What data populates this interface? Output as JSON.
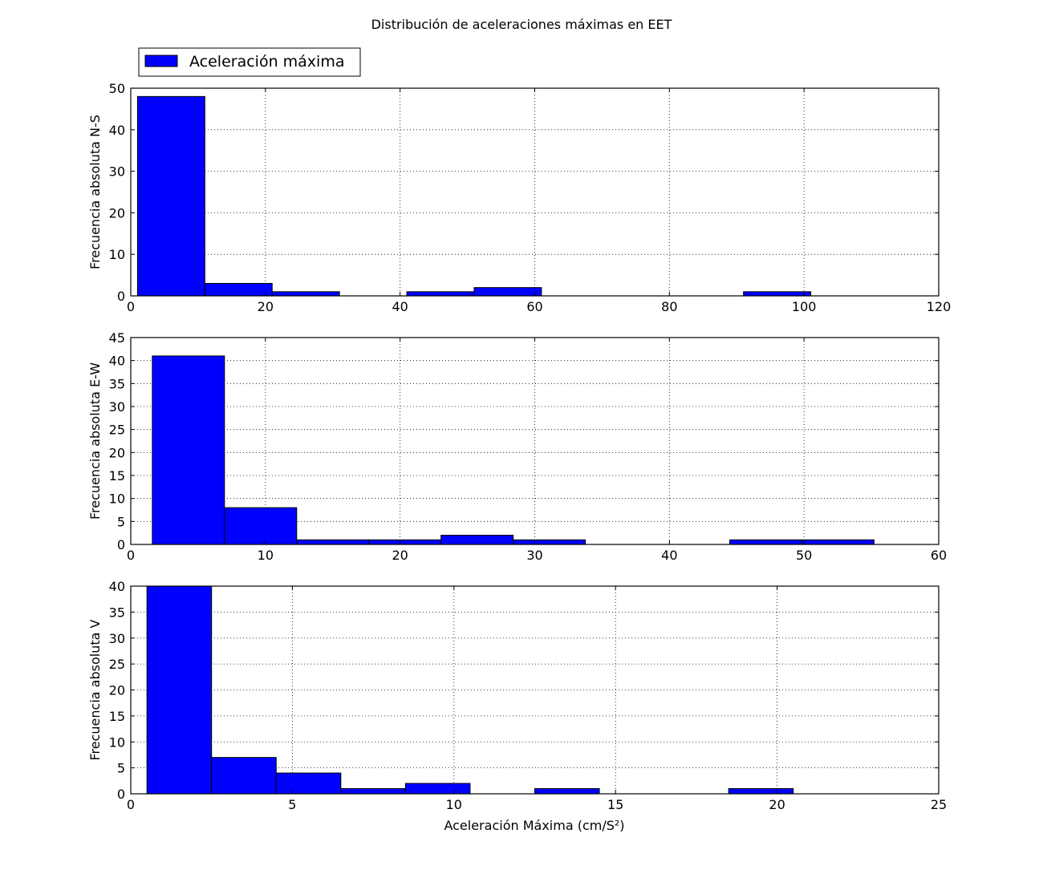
{
  "figure": {
    "title": "Distribución de aceleraciones máximas en EET",
    "xlabel": "Aceleración Máxima (cm/S²)",
    "legend": {
      "label": "Aceleración máxima",
      "placement": "above-top-left"
    }
  },
  "colors": {
    "bar_fill": "#0000ff",
    "bar_edge": "#000000",
    "grid": "#000000"
  },
  "chart_data": [
    {
      "type": "bar",
      "name": "N-S",
      "ylabel": "Frecuencia absoluta N-S",
      "xlim": [
        0,
        120
      ],
      "ylim": [
        0,
        50
      ],
      "xticks": [
        0,
        20,
        40,
        60,
        80,
        100,
        120
      ],
      "yticks": [
        0,
        10,
        20,
        30,
        40,
        50
      ],
      "bin_edges": [
        1,
        11,
        21,
        31,
        41,
        51,
        61,
        71,
        81,
        91,
        101
      ],
      "values": [
        48,
        3,
        1,
        0,
        1,
        2,
        0,
        0,
        0,
        1
      ],
      "grid": true
    },
    {
      "type": "bar",
      "name": "E-W",
      "ylabel": "Frecuencia absoluta E-W",
      "xlim": [
        0,
        60
      ],
      "ylim": [
        0,
        45
      ],
      "xticks": [
        0,
        10,
        20,
        30,
        40,
        50,
        60
      ],
      "yticks": [
        0,
        5,
        10,
        15,
        20,
        25,
        30,
        35,
        40,
        45
      ],
      "bin_edges": [
        1.6,
        6.96,
        12.32,
        17.68,
        23.04,
        28.4,
        33.76,
        39.12,
        44.48,
        49.84,
        55.2
      ],
      "values": [
        41,
        8,
        1,
        1,
        2,
        1,
        0,
        0,
        1,
        1
      ],
      "grid": true
    },
    {
      "type": "bar",
      "name": "V",
      "ylabel": "Frecuencia absoluta V",
      "xlim": [
        0,
        25
      ],
      "ylim": [
        0,
        40
      ],
      "xticks": [
        0,
        5,
        10,
        15,
        20,
        25
      ],
      "yticks": [
        0,
        5,
        10,
        15,
        20,
        25,
        30,
        35,
        40
      ],
      "bin_edges": [
        0.5,
        2.5,
        4.5,
        6.5,
        8.5,
        10.5,
        12.5,
        14.5,
        16.5,
        18.5,
        20.5
      ],
      "values": [
        40,
        7,
        4,
        1,
        2,
        0,
        1,
        0,
        0,
        1
      ],
      "grid": true
    }
  ]
}
